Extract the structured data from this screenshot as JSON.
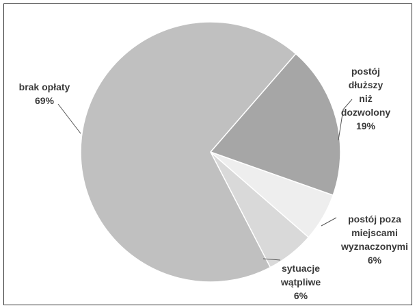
{
  "chart_data": {
    "type": "pie",
    "categories": [
      "brak opłaty",
      "postój dłuższy\nniż dozwolony",
      "postój poza\nmiejscami\nwyznaczonymi",
      "sytuacje\nwątpliwe"
    ],
    "values": [
      69,
      19,
      6,
      6
    ],
    "value_labels": [
      "69%",
      "19%",
      "6%",
      "6%"
    ],
    "colors": [
      "#c0c0c0",
      "#a6a6a6",
      "#eeeeee",
      "#d9d9d9"
    ]
  }
}
